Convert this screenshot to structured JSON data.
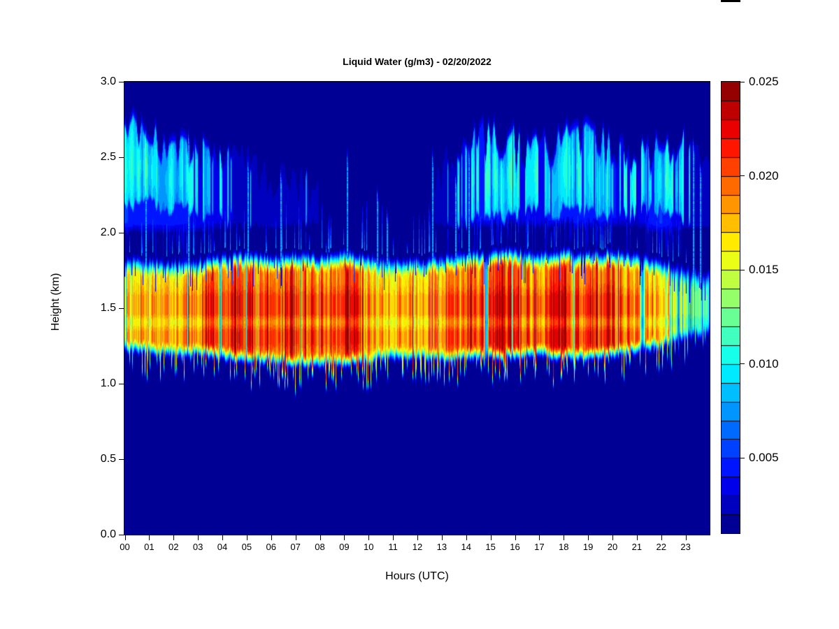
{
  "title": "Liquid Water (g/m3) - 02/20/2022",
  "axes": {
    "x": {
      "label": "Hours (UTC)",
      "ticks": [
        "00",
        "01",
        "02",
        "03",
        "04",
        "05",
        "06",
        "07",
        "08",
        "09",
        "10",
        "11",
        "12",
        "13",
        "14",
        "15",
        "16",
        "17",
        "18",
        "19",
        "20",
        "21",
        "22",
        "23"
      ],
      "range": [
        0,
        24
      ]
    },
    "y": {
      "label": "Height (km)",
      "ticks": [
        "0.0",
        "0.5",
        "1.0",
        "1.5",
        "2.0",
        "2.5",
        "3.0"
      ],
      "tick_values": [
        0.0,
        0.5,
        1.0,
        1.5,
        2.0,
        2.5,
        3.0
      ],
      "range": [
        0,
        3
      ]
    }
  },
  "colorbar": {
    "ticks": [
      "0.005",
      "0.010",
      "0.015",
      "0.020",
      "0.025"
    ],
    "tick_values": [
      0.005,
      0.01,
      0.015,
      0.02,
      0.025
    ],
    "min_value": 0.001,
    "max_value": 0.025,
    "num_levels": 24,
    "colormap": "jet"
  },
  "chart_data": {
    "type": "heatmap",
    "title": "Liquid Water (g/m3) - 02/20/2022",
    "xlabel": "Hours (UTC)",
    "ylabel": "Height (km)",
    "value_units": "g/m3",
    "x_range_hours": [
      0,
      24
    ],
    "y_range_km": [
      0,
      3
    ],
    "background_g_m3": 0.001,
    "colormap": "jet",
    "level_step_g_m3": 0.001,
    "control_hours": [
      0,
      1,
      2,
      3,
      4,
      5,
      6,
      7,
      8,
      9,
      10,
      11,
      12,
      13,
      14,
      15,
      16,
      17,
      18,
      19,
      20,
      21,
      22,
      23,
      24
    ],
    "cloud_band": {
      "top_km": [
        1.86,
        1.86,
        1.85,
        1.86,
        1.88,
        1.9,
        1.88,
        1.9,
        1.88,
        1.92,
        1.88,
        1.85,
        1.86,
        1.88,
        1.9,
        1.92,
        1.92,
        1.9,
        1.92,
        1.9,
        1.92,
        1.88,
        1.86,
        1.8,
        1.78
      ],
      "bottom_km": [
        1.17,
        1.16,
        1.15,
        1.15,
        1.12,
        1.1,
        1.1,
        1.08,
        1.08,
        1.08,
        1.1,
        1.12,
        1.12,
        1.12,
        1.12,
        1.12,
        1.13,
        1.14,
        1.12,
        1.12,
        1.14,
        1.16,
        1.2,
        1.26,
        1.28
      ],
      "peak_g_m3": [
        0.016,
        0.017,
        0.017,
        0.017,
        0.019,
        0.019,
        0.018,
        0.019,
        0.018,
        0.02,
        0.017,
        0.016,
        0.017,
        0.017,
        0.018,
        0.02,
        0.02,
        0.018,
        0.02,
        0.019,
        0.02,
        0.017,
        0.015,
        0.012,
        0.01
      ],
      "core_heights_km": [
        1.31,
        1.51
      ],
      "red_streak_hours": [
        4.6,
        5.0,
        5.3,
        6.9,
        7.3,
        9.15,
        12.55,
        15.1,
        15.5,
        16.2,
        17.9,
        18.1,
        19.9,
        20.3
      ],
      "max_streak_hour": 9.15,
      "max_streak_g_m3": 0.023,
      "dark_gap_hours": [
        14.85,
        21.25
      ]
    },
    "upper_layer": {
      "coverage": [
        0.85,
        0.65,
        0.7,
        0.55,
        0.4,
        0.35,
        0.28,
        0.25,
        0.15,
        0.15,
        0.12,
        0.08,
        0.1,
        0.18,
        0.5,
        0.75,
        0.6,
        0.55,
        0.8,
        0.7,
        0.65,
        0.35,
        0.85,
        0.25,
        0.2
      ],
      "top_km": [
        2.7,
        2.68,
        2.6,
        2.55,
        2.5,
        2.45,
        2.35,
        2.35,
        2.3,
        2.35,
        2.3,
        2.25,
        2.35,
        2.45,
        2.6,
        2.65,
        2.6,
        2.55,
        2.62,
        2.65,
        2.6,
        2.5,
        2.6,
        2.6,
        2.55
      ],
      "bottom_km": [
        2.12,
        2.15,
        2.1,
        2.1,
        2.05,
        2.05,
        2.05,
        2.05,
        2.05,
        2.05,
        2.05,
        2.05,
        2.05,
        2.05,
        2.02,
        2.05,
        2.08,
        2.1,
        2.1,
        2.08,
        2.05,
        2.1,
        2.1,
        2.05,
        2.05
      ],
      "typical_g_m3": 0.01
    },
    "spikes": [
      {
        "hour": 0.85,
        "top_km": 2.72
      },
      {
        "hour": 2.6,
        "top_km": 2.7
      },
      {
        "hour": 5.05,
        "top_km": 2.52
      },
      {
        "hour": 6.4,
        "top_km": 2.45
      },
      {
        "hour": 9.12,
        "top_km": 2.56
      },
      {
        "hour": 10.35,
        "top_km": 2.32
      },
      {
        "hour": 10.75,
        "top_km": 2.18
      },
      {
        "hour": 12.62,
        "top_km": 2.56
      },
      {
        "hour": 13.55,
        "top_km": 2.42
      },
      {
        "hour": 14.1,
        "top_km": 2.6
      },
      {
        "hour": 23.3,
        "top_km": 2.65
      },
      {
        "hour": 23.6,
        "top_km": 2.5
      }
    ]
  }
}
